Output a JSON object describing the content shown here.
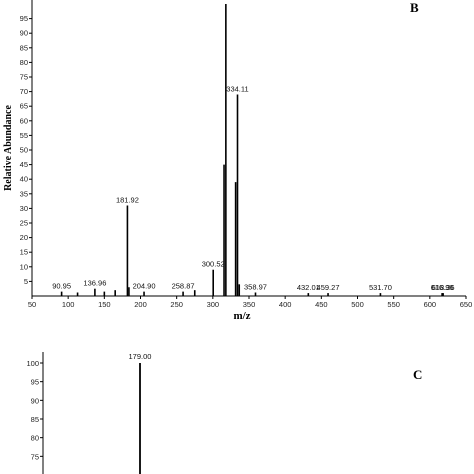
{
  "chart_data": [
    {
      "type": "bar",
      "panel_label": "B",
      "xlabel": "m/z",
      "ylabel": "Relative Abundance",
      "xlim": [
        50,
        650
      ],
      "ylim": [
        0,
        100
      ],
      "x_ticks": [
        50,
        100,
        150,
        200,
        250,
        300,
        350,
        400,
        450,
        500,
        550,
        600,
        650
      ],
      "y_ticks": [
        5,
        10,
        15,
        20,
        25,
        30,
        35,
        40,
        45,
        50,
        55,
        60,
        65,
        70,
        75,
        80,
        85,
        90,
        95
      ],
      "peaks": [
        {
          "x": 90.95,
          "y": 1.5,
          "label": "90.95"
        },
        {
          "x": 113.0,
          "y": 1.2,
          "label": ""
        },
        {
          "x": 136.96,
          "y": 2.5,
          "label": "136.96"
        },
        {
          "x": 150.0,
          "y": 1.5,
          "label": ""
        },
        {
          "x": 165.0,
          "y": 2.0,
          "label": ""
        },
        {
          "x": 181.92,
          "y": 31,
          "label": "181.92"
        },
        {
          "x": 184.0,
          "y": 3,
          "label": ""
        },
        {
          "x": 204.9,
          "y": 1.5,
          "label": "204.90"
        },
        {
          "x": 258.87,
          "y": 1.5,
          "label": "258.87"
        },
        {
          "x": 275.0,
          "y": 2.0,
          "label": ""
        },
        {
          "x": 300.52,
          "y": 9,
          "label": "300.52"
        },
        {
          "x": 318.0,
          "y": 100,
          "label": ""
        },
        {
          "x": 315.5,
          "y": 45,
          "label": ""
        },
        {
          "x": 331.5,
          "y": 39,
          "label": ""
        },
        {
          "x": 334.11,
          "y": 69,
          "label": "334.11"
        },
        {
          "x": 336.5,
          "y": 4,
          "label": ""
        },
        {
          "x": 358.97,
          "y": 1.2,
          "label": "358.97"
        },
        {
          "x": 432.01,
          "y": 1.0,
          "label": "432.01"
        },
        {
          "x": 459.27,
          "y": 1.0,
          "label": "459.27"
        },
        {
          "x": 531.7,
          "y": 1.0,
          "label": "531.70"
        },
        {
          "x": 616.96,
          "y": 1.0,
          "label": "616.96"
        },
        {
          "x": 618.36,
          "y": 1.0,
          "label": "618.36"
        }
      ]
    },
    {
      "type": "bar",
      "panel_label": "C",
      "ylim": [
        70,
        100
      ],
      "y_ticks": [
        75,
        80,
        85,
        90,
        95,
        100
      ],
      "y_tick_labels": [
        "75",
        "80",
        "85",
        "90",
        "95",
        "100"
      ],
      "peaks": [
        {
          "x": 179.0,
          "y": 100,
          "label": "179.00"
        }
      ]
    }
  ]
}
